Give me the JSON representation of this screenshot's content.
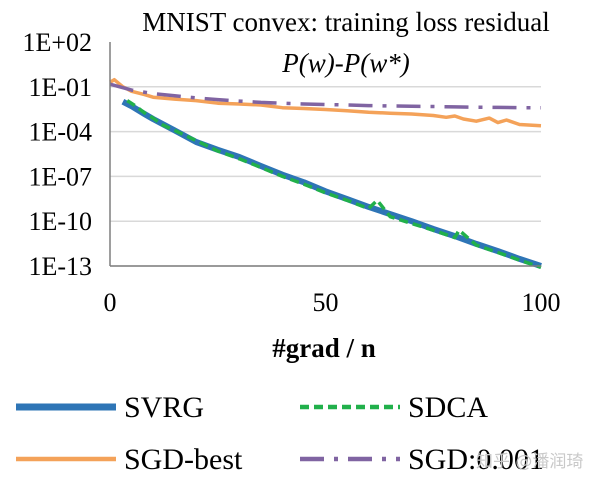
{
  "chart_data": {
    "type": "line",
    "title": "MNIST convex: training loss residual",
    "subtitle": "P(w)-P(w*)",
    "xlabel": "#grad / n",
    "ylabel": "",
    "y_scale": "log",
    "xlim": [
      0,
      100
    ],
    "ylim": [
      1e-13,
      100
    ],
    "grid": "horizontal",
    "legend_position": "bottom",
    "x_ticks": [
      "0",
      "50",
      "100"
    ],
    "y_ticks": [
      "1E+02",
      "1E-01",
      "1E-04",
      "1E-07",
      "1E-10",
      "1E-13"
    ],
    "series": [
      {
        "name": "SVRG",
        "color": "#2e75b6",
        "style": "solid",
        "x": [
          3,
          5,
          8,
          10,
          15,
          20,
          25,
          30,
          35,
          40,
          45,
          50,
          55,
          60,
          65,
          70,
          75,
          80,
          85,
          90,
          95,
          100
        ],
        "y": [
          0.01,
          0.005,
          0.0015,
          0.0007,
          0.00012,
          2e-05,
          6e-06,
          2e-06,
          5e-07,
          1.3e-07,
          4e-08,
          1e-08,
          3e-09,
          9e-10,
          3e-10,
          1e-10,
          3e-11,
          1e-11,
          3e-12,
          1e-12,
          3e-13,
          1e-13
        ]
      },
      {
        "name": "SDCA",
        "color": "#21b04b",
        "style": "dashed",
        "x": [
          4,
          6,
          8,
          10,
          12,
          15,
          20,
          25,
          30,
          35,
          40,
          45,
          50,
          55,
          60,
          62,
          65,
          70,
          75,
          80,
          81,
          85,
          90,
          95,
          100
        ],
        "y": [
          0.012,
          0.005,
          0.0018,
          0.0008,
          0.0003,
          0.00012,
          2.5e-05,
          5e-06,
          1.5e-06,
          4e-07,
          1e-07,
          3e-08,
          8e-09,
          2.5e-09,
          7e-10,
          2.5e-09,
          2e-10,
          7e-11,
          2.5e-11,
          8e-12,
          2.5e-11,
          2.5e-12,
          8e-13,
          2.5e-13,
          8e-14
        ]
      },
      {
        "name": "SGD-best",
        "color": "#f4a259",
        "style": "solid",
        "x": [
          0,
          1,
          3,
          5,
          8,
          10,
          15,
          20,
          25,
          30,
          35,
          40,
          45,
          50,
          55,
          60,
          65,
          70,
          75,
          78,
          80,
          82,
          85,
          88,
          90,
          92,
          95,
          100
        ],
        "y": [
          0.2,
          0.3,
          0.1,
          0.05,
          0.03,
          0.02,
          0.015,
          0.012,
          0.008,
          0.007,
          0.006,
          0.004,
          0.0035,
          0.003,
          0.0025,
          0.002,
          0.0017,
          0.0015,
          0.0012,
          0.0009,
          0.0011,
          0.0007,
          0.0005,
          0.0008,
          0.0004,
          0.0006,
          0.0003,
          0.00025
        ]
      },
      {
        "name": "SGD:0.001",
        "color": "#8064a2",
        "style": "dash-dot",
        "x": [
          0,
          5,
          10,
          15,
          20,
          25,
          30,
          35,
          40,
          45,
          50,
          55,
          60,
          65,
          70,
          75,
          80,
          85,
          90,
          95,
          100
        ],
        "y": [
          0.15,
          0.06,
          0.035,
          0.025,
          0.018,
          0.014,
          0.011,
          0.009,
          0.008,
          0.007,
          0.0065,
          0.006,
          0.0055,
          0.0052,
          0.005,
          0.0048,
          0.0045,
          0.0043,
          0.0042,
          0.004,
          0.0039
        ]
      }
    ]
  },
  "watermark": "知乎 @潘润琦"
}
